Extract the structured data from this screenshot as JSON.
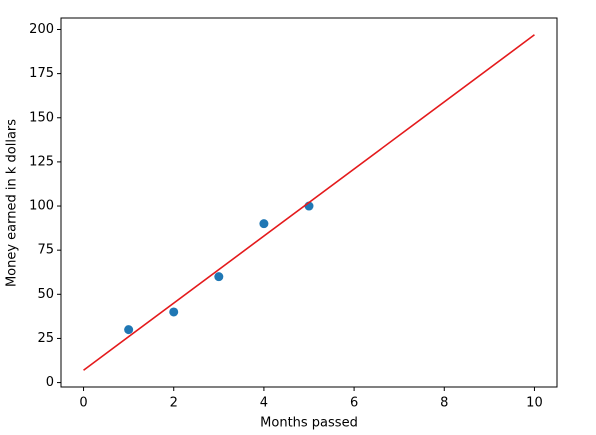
{
  "chart_data": {
    "type": "scatter",
    "xlabel": "Months passed",
    "ylabel": "Money earned in k dollars",
    "x": [
      1,
      2,
      3,
      4,
      5
    ],
    "values": [
      30,
      40,
      60,
      90,
      100
    ],
    "color": "#1f77b4",
    "line": {
      "x": [
        0,
        10
      ],
      "values": [
        7,
        197
      ],
      "color": "#e41a1c"
    },
    "xlim": [
      -0.5,
      10.5
    ],
    "ylim": [
      -2.5,
      206.5
    ],
    "xticks": [
      0,
      2,
      4,
      6,
      8,
      10
    ],
    "yticks": [
      0,
      25,
      50,
      75,
      100,
      125,
      150,
      175,
      200
    ],
    "grid": false
  }
}
